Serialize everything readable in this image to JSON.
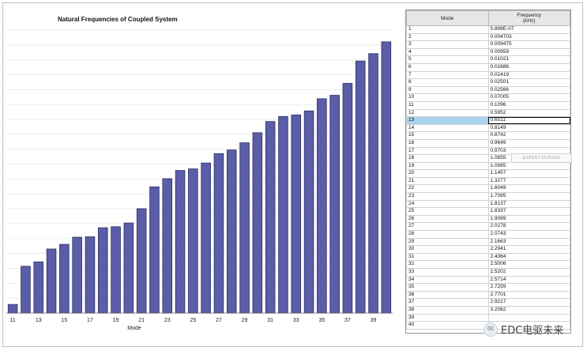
{
  "chart_data": {
    "type": "bar",
    "title": "Natural Frequencies of Coupled System",
    "xlabel": "Mode",
    "ylabel": "",
    "color": "#5a5ea8",
    "edge_color": "#2c2f63",
    "categories": [
      "11",
      "12",
      "13",
      "14",
      "15",
      "16",
      "17",
      "18",
      "19",
      "20",
      "21",
      "22",
      "23",
      "24",
      "25",
      "26",
      "27",
      "28",
      "29",
      "30",
      "31",
      "32",
      "33",
      "34",
      "35",
      "36",
      "37",
      "38",
      "39",
      "40"
    ],
    "x_tick_labels": [
      "11",
      "13",
      "15",
      "17",
      "19",
      "21",
      "23",
      "25",
      "27",
      "29",
      "31",
      "33",
      "35",
      "37",
      "39"
    ],
    "values": [
      0.1096,
      0.5952,
      0.6511,
      0.8149,
      0.8742,
      0.9649,
      0.9703,
      1.0855,
      1.0985,
      1.1457,
      1.3277,
      1.6049,
      1.7095,
      1.8137,
      1.8337,
      1.9089,
      2.0278,
      2.0743,
      2.1663,
      2.2941,
      2.4364,
      2.5006,
      2.5202,
      2.5714,
      2.7259,
      2.7701,
      2.9217,
      3.2062,
      3.3,
      3.45
    ],
    "ylim": [
      0,
      3.6
    ],
    "grid": true,
    "legend": "none"
  },
  "table": {
    "headers": {
      "mode": "Mode",
      "frequency_line1": "Frequency",
      "frequency_line2": "(kHz)"
    },
    "selected_mode": "13",
    "rows": [
      {
        "mode": "1",
        "freq": "5.898E-07"
      },
      {
        "mode": "2",
        "freq": "0.004703"
      },
      {
        "mode": "3",
        "freq": "0.009475"
      },
      {
        "mode": "4",
        "freq": "0.00959"
      },
      {
        "mode": "5",
        "freq": "0.01021"
      },
      {
        "mode": "6",
        "freq": "0.01686"
      },
      {
        "mode": "7",
        "freq": "0.02419"
      },
      {
        "mode": "8",
        "freq": "0.02501"
      },
      {
        "mode": "9",
        "freq": "0.02566"
      },
      {
        "mode": "10",
        "freq": "0.07005"
      },
      {
        "mode": "11",
        "freq": "0.1096"
      },
      {
        "mode": "12",
        "freq": "0.5952"
      },
      {
        "mode": "13",
        "freq": "0.6511"
      },
      {
        "mode": "14",
        "freq": "0.8149"
      },
      {
        "mode": "15",
        "freq": "0.8742"
      },
      {
        "mode": "16",
        "freq": "0.9649"
      },
      {
        "mode": "17",
        "freq": "0.9703"
      },
      {
        "mode": "18",
        "freq": "1.0855"
      },
      {
        "mode": "19",
        "freq": "1.0985"
      },
      {
        "mode": "20",
        "freq": "1.1457"
      },
      {
        "mode": "21",
        "freq": "1.3277"
      },
      {
        "mode": "22",
        "freq": "1.6049"
      },
      {
        "mode": "23",
        "freq": "1.7095"
      },
      {
        "mode": "24",
        "freq": "1.8137"
      },
      {
        "mode": "25",
        "freq": "1.8337"
      },
      {
        "mode": "26",
        "freq": "1.9089"
      },
      {
        "mode": "27",
        "freq": "2.0278"
      },
      {
        "mode": "28",
        "freq": "2.0743"
      },
      {
        "mode": "29",
        "freq": "2.1663"
      },
      {
        "mode": "30",
        "freq": "2.2941"
      },
      {
        "mode": "31",
        "freq": "2.4364"
      },
      {
        "mode": "32",
        "freq": "2.5006"
      },
      {
        "mode": "33",
        "freq": "2.5202"
      },
      {
        "mode": "34",
        "freq": "2.5714"
      },
      {
        "mode": "35",
        "freq": "2.7259"
      },
      {
        "mode": "36",
        "freq": "2.7701"
      },
      {
        "mode": "37",
        "freq": "2.9217"
      },
      {
        "mode": "38",
        "freq": "3.2062"
      },
      {
        "mode": "39",
        "freq": ""
      },
      {
        "mode": "40",
        "freq": ""
      }
    ]
  },
  "watermark": "EXPERTSCHUNG",
  "brand": {
    "text": "EDC电驱未来",
    "icon": "wechat-icon"
  }
}
